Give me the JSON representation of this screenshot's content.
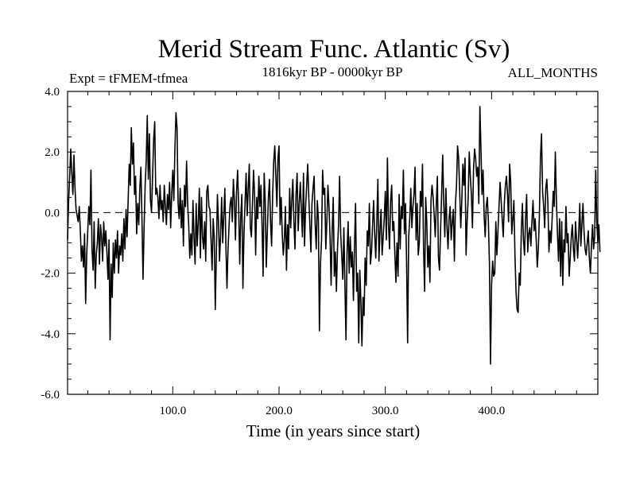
{
  "chart_data": {
    "type": "line",
    "title": "Merid Stream Func. Atlantic (Sv)",
    "subtitle_left": "Expt = tFMEM-tfmea",
    "subtitle_center": "1816kyr BP - 0000kyr BP",
    "subtitle_right": "ALL_MONTHS",
    "xlabel": "Time (in years since start)",
    "ylabel": "",
    "xlim": [
      1,
      500
    ],
    "ylim": [
      -6.0,
      4.0
    ],
    "x_ticks": [
      100,
      200,
      300,
      400
    ],
    "x_tick_labels": [
      "100.0",
      "200.0",
      "300.0",
      "400.0"
    ],
    "y_ticks": [
      4.0,
      2.0,
      0.0,
      -2.0,
      -4.0,
      -6.0
    ],
    "y_tick_labels": [
      "4.0",
      "2.0",
      "0.0",
      "-2.0",
      "-4.0",
      "-6.0"
    ],
    "reference_line": 0.0,
    "grid": false,
    "series": [
      {
        "name": "Merid Stream Func. Atlantic",
        "x_start": 1,
        "x_step": 1,
        "values": [
          -0.9,
          0.4,
          1.2,
          2.1,
          1.3,
          0.6,
          1.9,
          0.8,
          0.1,
          -0.1,
          -0.3,
          0.2,
          -0.6,
          -1.6,
          -1.1,
          -1.8,
          -0.7,
          -3.0,
          -1.4,
          -0.6,
          0.2,
          -0.4,
          1.4,
          -1.2,
          -1.9,
          -0.3,
          -2.5,
          -1.4,
          -1.0,
          -0.2,
          -1.7,
          -0.4,
          -0.8,
          -1.6,
          -0.3,
          -1.1,
          -0.6,
          -1.3,
          -2.2,
          -0.9,
          -4.2,
          -1.7,
          -2.8,
          -1.0,
          -2.0,
          -0.9,
          -1.5,
          -0.6,
          -2.0,
          -1.1,
          -1.4,
          -0.7,
          -1.6,
          -0.2,
          -1.2,
          0.1,
          -0.8,
          0.4,
          1.6,
          0.9,
          2.8,
          1.6,
          2.3,
          0.6,
          1.2,
          -0.7,
          0.3,
          -0.4,
          0.8,
          1.5,
          -0.2,
          -2.2,
          -0.5,
          0.9,
          1.7,
          3.2,
          1.1,
          2.6,
          0.4,
          0.0,
          1.2,
          2.4,
          3.0,
          0.6,
          0.8,
          0.5,
          -0.2,
          0.9,
          0.1,
          0.4,
          -0.3,
          0.9,
          0.2,
          -0.4,
          0.6,
          0.1,
          1.0,
          -0.5,
          0.6,
          1.4,
          0.4,
          2.1,
          3.3,
          2.8,
          0.3,
          -0.2,
          0.8,
          -0.5,
          0.4,
          -1.1,
          0.9,
          0.2,
          1.7,
          0.3,
          -0.4,
          -1.5,
          -0.7,
          -1.4,
          0.4,
          -0.8,
          -1.7,
          0.3,
          -1.1,
          -0.3,
          0.8,
          -1.5,
          0.5,
          -0.8,
          -1.2,
          -0.3,
          -1.6,
          0.7,
          0.9,
          0.2,
          0.1,
          -0.9,
          -1.9,
          -0.2,
          -0.8,
          -3.2,
          -1.4,
          0.6,
          -0.3,
          -1.6,
          -0.7,
          0.5,
          -1.0,
          -0.1,
          0.8,
          -1.1,
          -2.5,
          -1.2,
          -0.4,
          0.3,
          0.5,
          -0.3,
          1.1,
          0.4,
          -0.9,
          0.7,
          1.4,
          0.2,
          -1.7,
          -0.1,
          0.6,
          -2.5,
          -0.7,
          0.3,
          1.3,
          -0.1,
          0.8,
          1.6,
          -0.5,
          -0.8,
          0.3,
          1.4,
          0.6,
          -1.4,
          0.5,
          -0.2,
          1.2,
          0.2,
          0.9,
          -0.4,
          -2.1,
          1.3,
          0.4,
          -1.8,
          -0.6,
          0.5,
          1.1,
          -0.3,
          -1.1,
          0.6,
          1.7,
          2.2,
          1.2,
          0.2,
          1.8,
          2.2,
          -0.4,
          0.5,
          -0.7,
          -1.4,
          -0.9,
          0.2,
          -1.9,
          -0.4,
          -1.2,
          0.8,
          -0.5,
          0.4,
          1.1,
          -0.3,
          -1.2,
          0.6,
          1.3,
          -0.6,
          0.3,
          1.0,
          0.1,
          -0.8,
          1.3,
          -1.1,
          0.2,
          0.9,
          1.6,
          0.5,
          -0.4,
          -1.3,
          0.3,
          0.8,
          1.2,
          -0.4,
          -1.2,
          0.4,
          -0.2,
          -3.9,
          -1.7,
          -0.9,
          1.4,
          0.6,
          0.8,
          -1.2,
          -0.3,
          0.9,
          0.2,
          -0.8,
          -2.4,
          -0.6,
          0.5,
          -2.1,
          -1.3,
          -2.6,
          -1.2,
          -0.4,
          1.2,
          -0.7,
          -1.4,
          -2.2,
          -0.5,
          -2.4,
          -4.2,
          -1.3,
          -0.3,
          -2.0,
          -0.8,
          -1.8,
          -1.3,
          -2.9,
          -1.1,
          0.3,
          -2.6,
          -2.0,
          -4.3,
          -1.9,
          -2.9,
          -4.4,
          -2.8,
          -3.4,
          -1.5,
          -2.4,
          -0.6,
          -1.1,
          0.3,
          -1.7,
          -1.3,
          -0.4,
          0.4,
          -0.7,
          -1.5,
          -0.3,
          1.1,
          -1.6,
          -0.6,
          0.1,
          -1.4,
          -0.8,
          -0.2,
          0.7,
          -0.9,
          1.8,
          -0.4,
          -1.2,
          0.4,
          0.9,
          -0.6,
          -0.3,
          -1.4,
          -2.3,
          -1.0,
          -2.1,
          0.6,
          -1.2,
          0.2,
          -0.2,
          1.4,
          -0.7,
          0.3,
          -1.6,
          -4.3,
          -0.8,
          -0.2,
          0.8,
          -0.5,
          0.2,
          0.6,
          1.5,
          -0.9,
          0.3,
          -1.4,
          -1.0,
          0.7,
          0.2,
          1.6,
          -1.2,
          -2.6,
          0.5,
          -0.3,
          -1.8,
          -1.1,
          -2.3,
          0.4,
          0.9,
          0.5,
          -0.1,
          -0.8,
          0.3,
          1.2,
          -1.5,
          -1.9,
          -0.6,
          0.6,
          1.9,
          0.3,
          -0.8,
          0.8,
          -0.4,
          -1.2,
          -0.2,
          0.2,
          -0.9,
          -0.3,
          0.1,
          -1.6,
          0.3,
          0.9,
          2.2,
          1.8,
          0.7,
          -0.5,
          0.4,
          1.6,
          0.9,
          1.8,
          -1.4,
          -0.3,
          0.5,
          2.0,
          1.2,
          0.6,
          -0.5,
          1.4,
          2.1,
          1.8,
          1.2,
          1.5,
          0.3,
          3.5,
          2.1,
          0.6,
          1.4,
          -0.1,
          -0.8,
          0.2,
          0.5,
          -0.3,
          -1.7,
          -5.0,
          -2.4,
          -1.6,
          -2.1,
          -2.0,
          -0.3,
          -1.4,
          -0.6,
          0.2,
          1.0,
          0.4,
          -0.2,
          -0.8,
          0.3,
          0.9,
          1.2,
          0.6,
          -0.3,
          1.6,
          1.0,
          -0.7,
          -0.2,
          0.4,
          -1.4,
          -2.6,
          -3.2,
          -3.3,
          -2.0,
          -2.4,
          -0.6,
          0.3,
          -0.9,
          -1.4,
          -0.2,
          0.6,
          -1.3,
          -0.7,
          -0.5,
          -1.1,
          -0.3,
          0.4,
          -0.6,
          -0.2,
          -0.9,
          -1.8,
          -1.2,
          -0.1,
          1.8,
          2.6,
          0.7,
          0.2,
          -0.5,
          0.8,
          1.1,
          0.3,
          -1.3,
          -0.6,
          -1.0,
          -0.2,
          0.7,
          0.2,
          2.0,
          0.4,
          -0.7,
          -1.6,
          -0.2,
          -2.1,
          -0.3,
          -2.4,
          -0.9,
          -1.3,
          0.2,
          -1.0,
          -0.7,
          -2.1,
          -1.5,
          -0.8,
          -0.4,
          -1.2,
          -1.6,
          -0.3,
          -0.9,
          -1.5,
          -0.7,
          0.3,
          -1.1,
          -0.4,
          0.3,
          -0.6,
          -1.2,
          -1.4,
          -1.0,
          -0.6,
          -1.5,
          -2.0,
          -1.1,
          -0.4,
          -1.2,
          -0.8,
          1.4,
          -0.3,
          -1.0,
          -0.4,
          -1.3
        ]
      }
    ]
  }
}
